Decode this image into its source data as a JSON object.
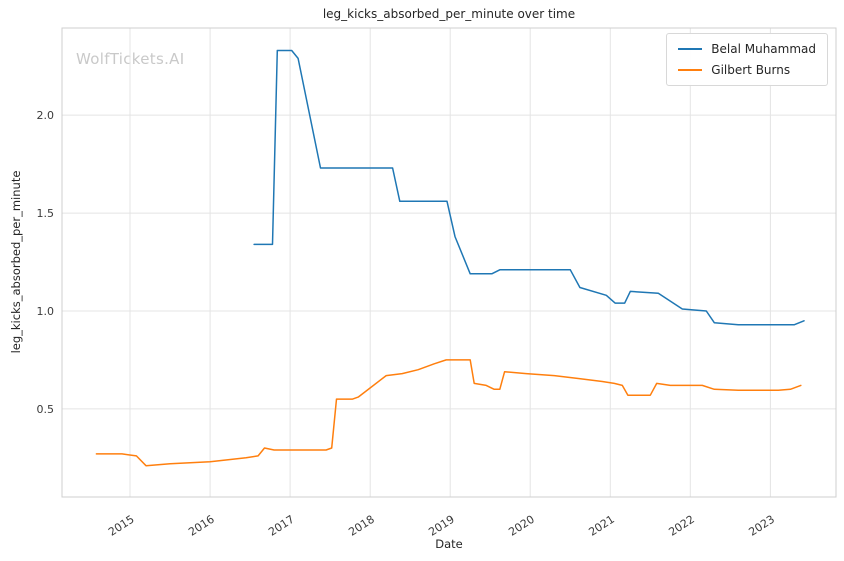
{
  "figure": {
    "title": "leg_kicks_absorbed_per_minute over time",
    "watermark": "WolfTickets.AI",
    "xlabel": "Date",
    "ylabel": "leg_kicks_absorbed_per_minute"
  },
  "chart_data": {
    "type": "line",
    "title": "leg_kicks_absorbed_per_minute over time",
    "xlabel": "Date",
    "ylabel": "leg_kicks_absorbed_per_minute",
    "xlim": [
      2014.15,
      2023.82
    ],
    "ylim": [
      0.05,
      2.445
    ],
    "x_ticks": [
      2015,
      2016,
      2017,
      2018,
      2019,
      2020,
      2021,
      2022,
      2023
    ],
    "y_ticks": [
      0.5,
      1.0,
      1.5,
      2.0
    ],
    "grid": true,
    "legend_position": "upper right",
    "series": [
      {
        "name": "Belal Muhammad",
        "color": "#1f77b4",
        "points": [
          [
            2016.55,
            1.34
          ],
          [
            2016.78,
            1.34
          ],
          [
            2016.84,
            2.33
          ],
          [
            2017.02,
            2.33
          ],
          [
            2017.1,
            2.29
          ],
          [
            2017.38,
            1.73
          ],
          [
            2018.28,
            1.73
          ],
          [
            2018.37,
            1.56
          ],
          [
            2018.96,
            1.56
          ],
          [
            2019.06,
            1.38
          ],
          [
            2019.25,
            1.19
          ],
          [
            2019.52,
            1.19
          ],
          [
            2019.62,
            1.21
          ],
          [
            2020.5,
            1.21
          ],
          [
            2020.62,
            1.12
          ],
          [
            2020.95,
            1.08
          ],
          [
            2021.06,
            1.04
          ],
          [
            2021.18,
            1.04
          ],
          [
            2021.25,
            1.1
          ],
          [
            2021.6,
            1.09
          ],
          [
            2021.9,
            1.01
          ],
          [
            2022.2,
            1.0
          ],
          [
            2022.3,
            0.94
          ],
          [
            2022.6,
            0.93
          ],
          [
            2023.3,
            0.93
          ],
          [
            2023.42,
            0.95
          ]
        ]
      },
      {
        "name": "Gilbert Burns",
        "color": "#ff7f0e",
        "points": [
          [
            2014.58,
            0.27
          ],
          [
            2014.9,
            0.27
          ],
          [
            2015.08,
            0.26
          ],
          [
            2015.2,
            0.21
          ],
          [
            2015.5,
            0.22
          ],
          [
            2016.0,
            0.23
          ],
          [
            2016.45,
            0.25
          ],
          [
            2016.6,
            0.26
          ],
          [
            2016.68,
            0.3
          ],
          [
            2016.8,
            0.29
          ],
          [
            2017.45,
            0.29
          ],
          [
            2017.52,
            0.3
          ],
          [
            2017.58,
            0.55
          ],
          [
            2017.78,
            0.55
          ],
          [
            2017.85,
            0.56
          ],
          [
            2018.2,
            0.67
          ],
          [
            2018.4,
            0.68
          ],
          [
            2018.6,
            0.7
          ],
          [
            2018.8,
            0.73
          ],
          [
            2018.95,
            0.75
          ],
          [
            2019.25,
            0.75
          ],
          [
            2019.3,
            0.63
          ],
          [
            2019.45,
            0.62
          ],
          [
            2019.55,
            0.6
          ],
          [
            2019.62,
            0.6
          ],
          [
            2019.68,
            0.69
          ],
          [
            2019.95,
            0.68
          ],
          [
            2020.3,
            0.67
          ],
          [
            2020.6,
            0.655
          ],
          [
            2020.9,
            0.64
          ],
          [
            2021.05,
            0.63
          ],
          [
            2021.15,
            0.62
          ],
          [
            2021.22,
            0.57
          ],
          [
            2021.5,
            0.57
          ],
          [
            2021.58,
            0.63
          ],
          [
            2021.75,
            0.62
          ],
          [
            2022.15,
            0.62
          ],
          [
            2022.3,
            0.6
          ],
          [
            2022.6,
            0.595
          ],
          [
            2023.1,
            0.595
          ],
          [
            2023.25,
            0.6
          ],
          [
            2023.38,
            0.62
          ]
        ]
      }
    ]
  }
}
